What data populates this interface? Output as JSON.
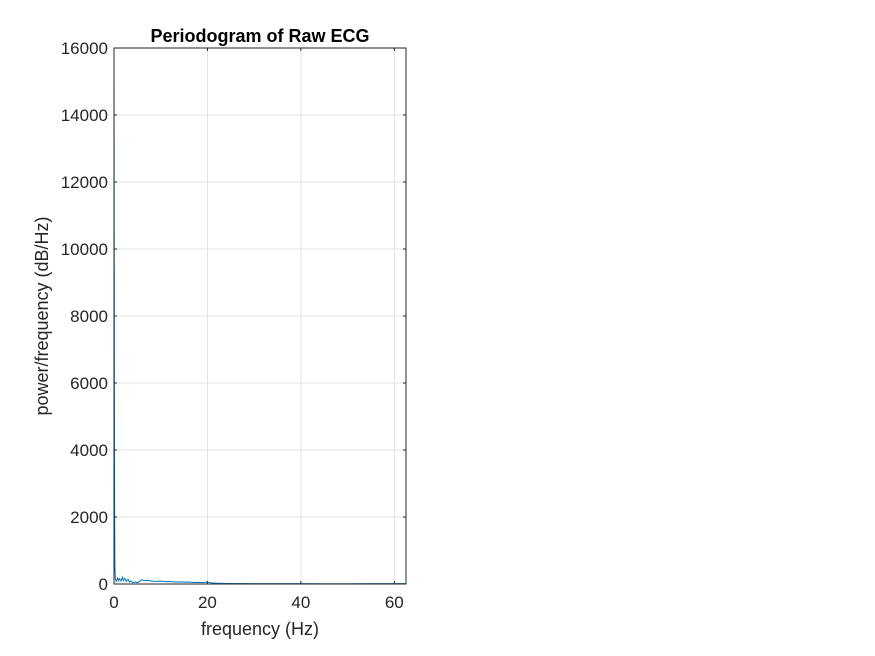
{
  "chart_data": {
    "type": "line",
    "title": "Periodogram of Raw ECG",
    "xlabel": "frequency (Hz)",
    "ylabel": "power/frequency (dB/Hz)",
    "xlim": [
      0,
      62.5
    ],
    "ylim": [
      0,
      16000
    ],
    "xticks": [
      0,
      20,
      40,
      60
    ],
    "yticks": [
      0,
      2000,
      4000,
      6000,
      8000,
      10000,
      12000,
      14000,
      16000
    ],
    "xtick_labels": [
      "0",
      "20",
      "40",
      "60"
    ],
    "ytick_labels": [
      "0",
      "2000",
      "4000",
      "6000",
      "8000",
      "10000",
      "12000",
      "14000",
      "16000"
    ],
    "grid": true,
    "series": [
      {
        "color": "#0072BD",
        "x": [
          0,
          0.1,
          0.2,
          0.3,
          0.5,
          0.8,
          1.0,
          1.2,
          1.5,
          1.8,
          2.0,
          2.3,
          2.6,
          3.0,
          3.3,
          3.6,
          4.0,
          4.5,
          5.0,
          5.5,
          6.0,
          6.5,
          7.0,
          8.0,
          9.0,
          10.0,
          11.0,
          12.0,
          13.0,
          14.0,
          15.0,
          16.0,
          17.0,
          18.0,
          19.0,
          20.0,
          21.0,
          23.0,
          25.0,
          30.0,
          35.0,
          40.0,
          45.0,
          50.0,
          55.0,
          60.0,
          62.5
        ],
        "values": [
          15300,
          3000,
          500,
          150,
          80,
          180,
          100,
          160,
          90,
          200,
          110,
          170,
          80,
          140,
          60,
          90,
          40,
          60,
          40,
          80,
          130,
          100,
          110,
          90,
          80,
          85,
          70,
          75,
          60,
          65,
          55,
          60,
          45,
          50,
          40,
          55,
          30,
          20,
          15,
          12,
          10,
          10,
          8,
          8,
          10,
          12,
          10
        ]
      }
    ]
  }
}
